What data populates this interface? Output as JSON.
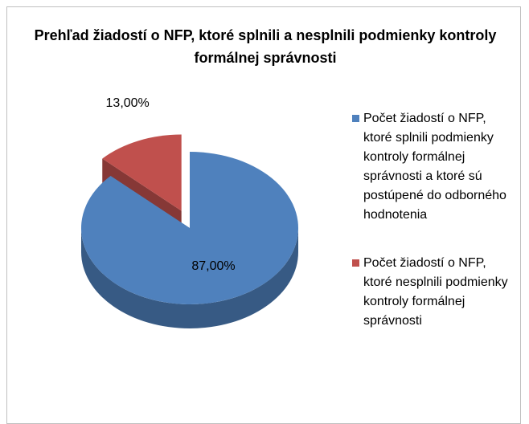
{
  "chart_data": {
    "type": "pie",
    "title": "Prehľad žiadostí o NFP, ktoré splnili a nesplnili podmienky kontroly formálnej správnosti",
    "categories": [
      "Počet žiadostí o NFP, ktoré splnili podmienky kontroly formálnej správnosti a ktoré sú postúpené do odborného hodnotenia",
      "Počet žiadostí o NFP, ktoré nesplnili podmienky kontroly formálnej správnosti"
    ],
    "values": [
      87,
      13
    ],
    "value_labels": [
      "87,00%",
      "13,00%"
    ],
    "colors": [
      "#4f81bd",
      "#c0504d"
    ],
    "legend": "right"
  }
}
